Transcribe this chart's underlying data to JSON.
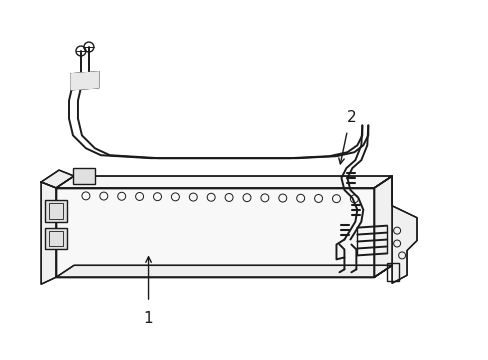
{
  "background_color": "#ffffff",
  "line_color": "#1a1a1a",
  "label_color": "#1a1a1a",
  "part1_label": "1",
  "part2_label": "2",
  "figsize": [
    4.89,
    3.6
  ],
  "dpi": 100
}
